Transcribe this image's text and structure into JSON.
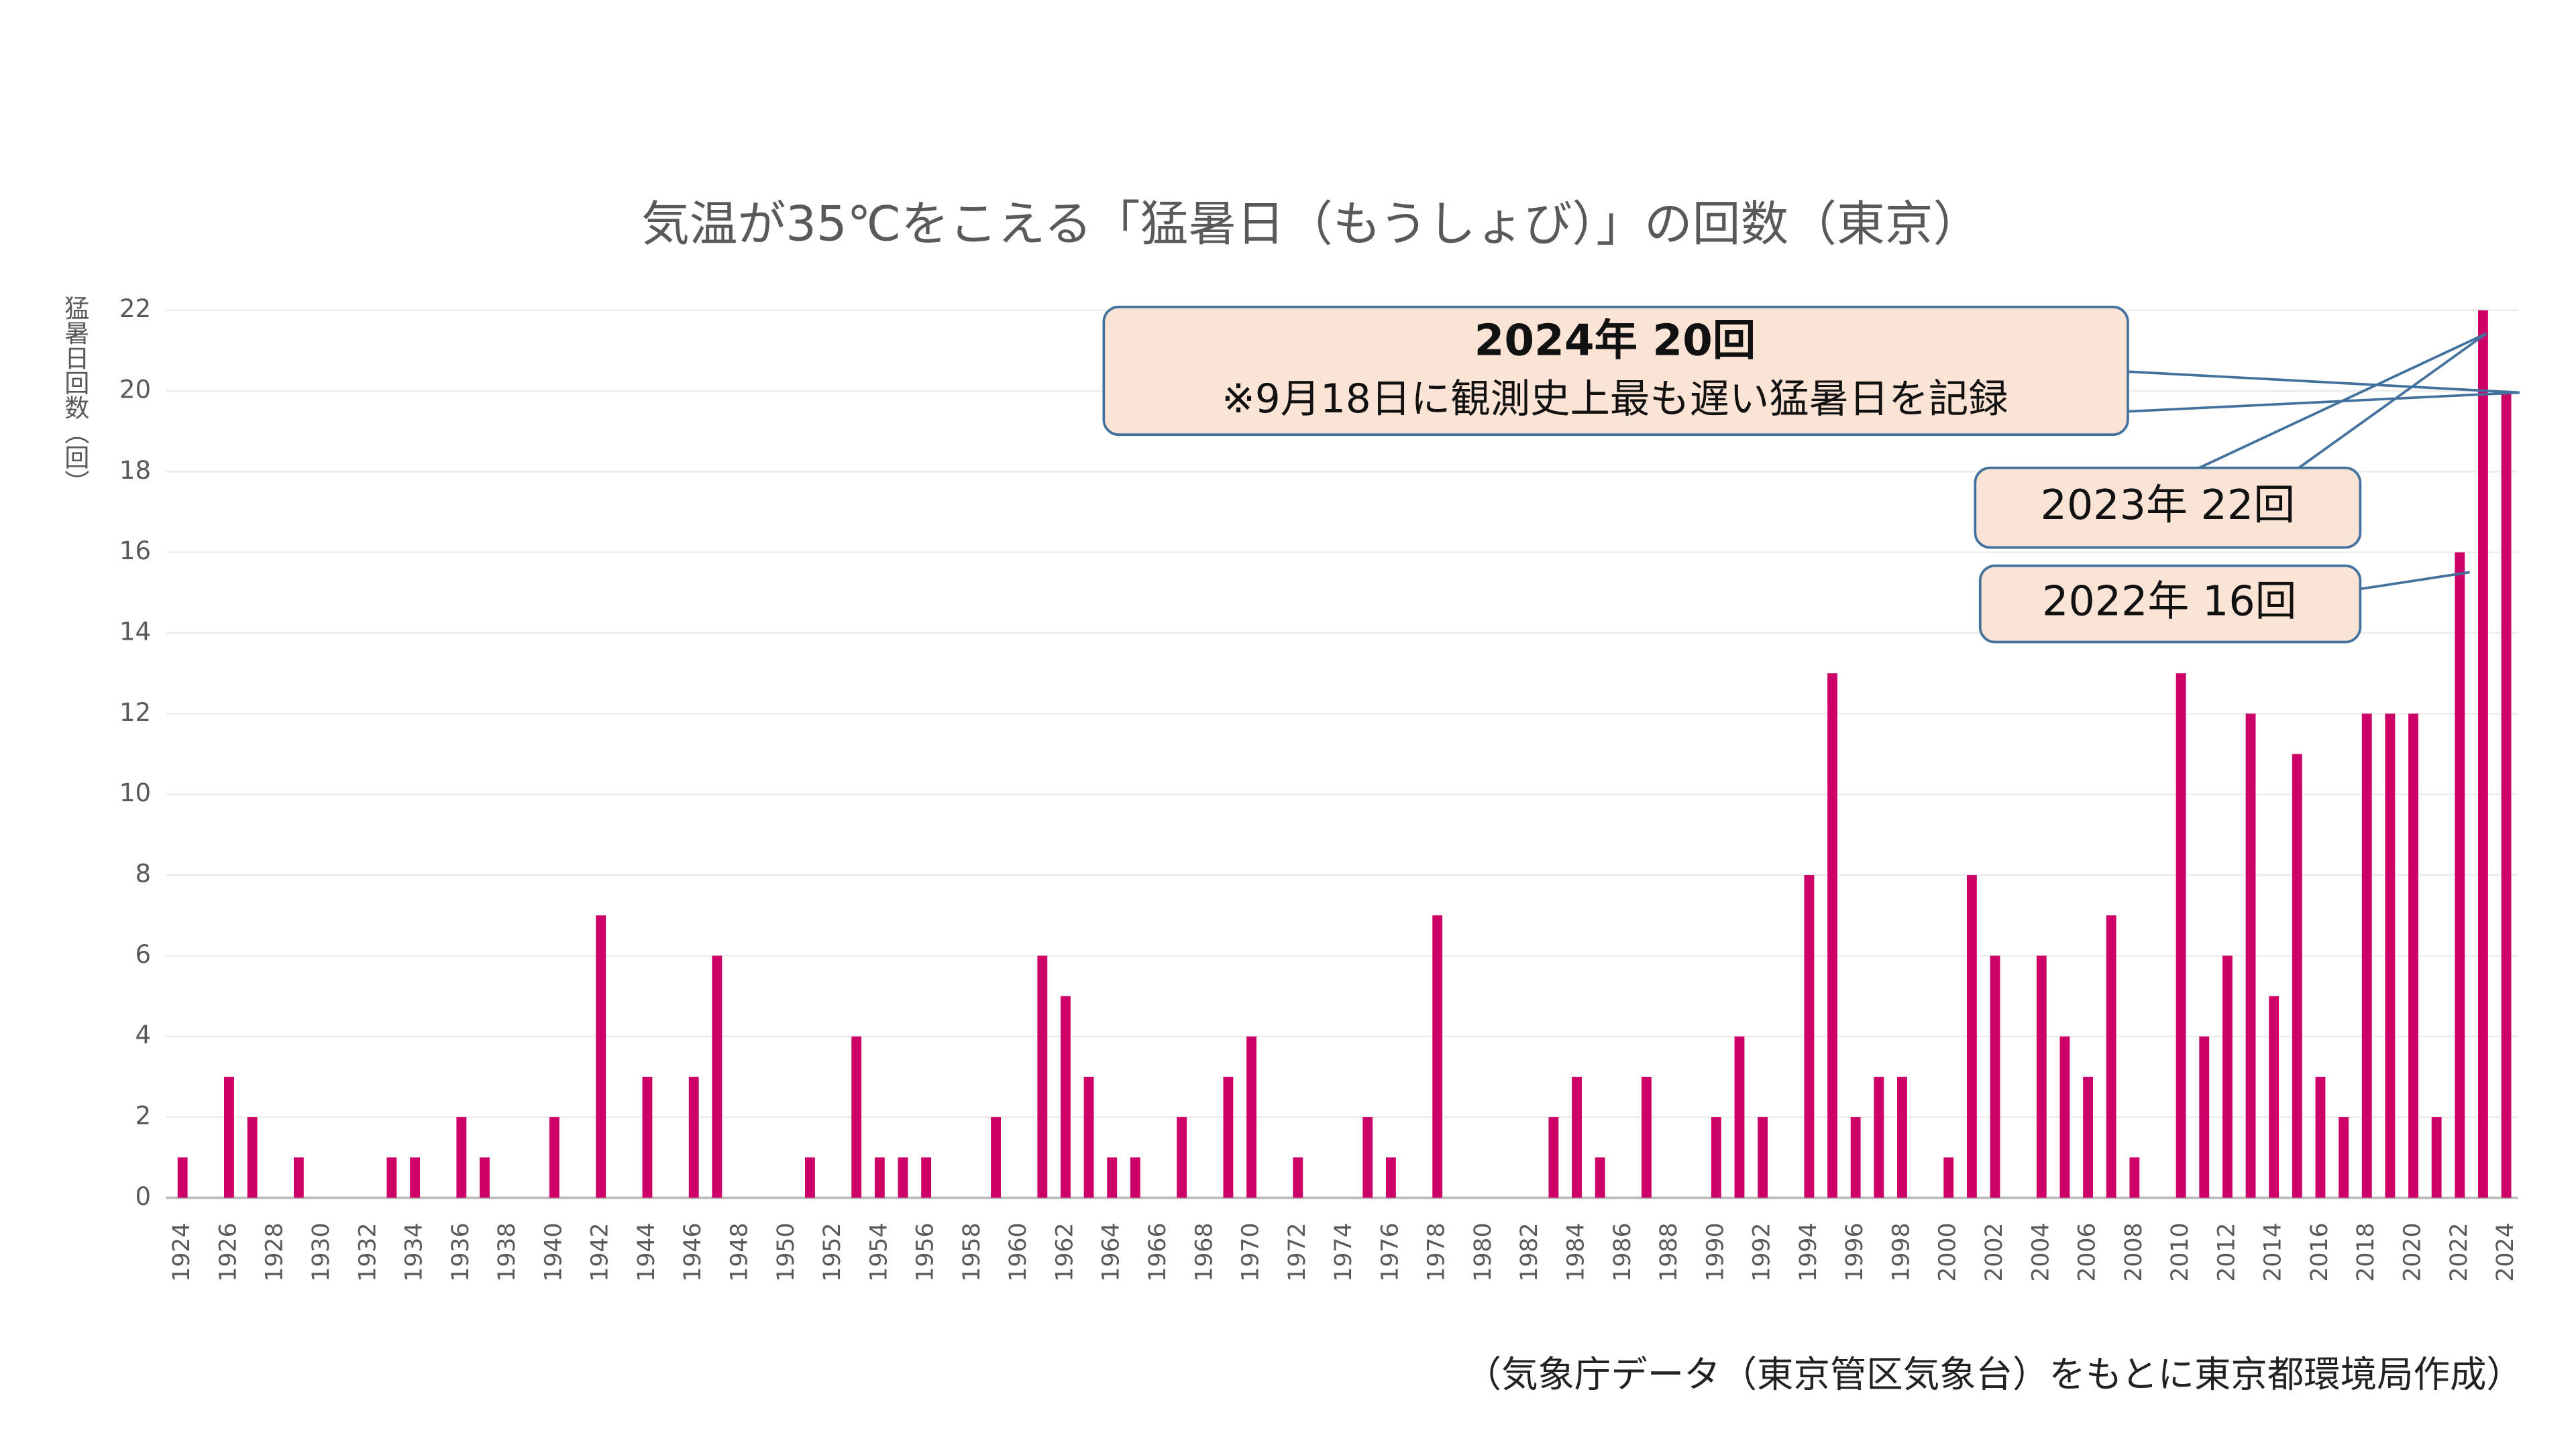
{
  "chart_data": {
    "type": "bar",
    "title": "気温が35℃をこえる「猛暑日（もうしょび）」の回数（東京）",
    "y_label": "猛暑日回数（回）",
    "source": "（気象庁データ（東京管区気象台）をもとに東京都環境局作成）",
    "annotations": [
      {
        "title": "2024年  20回",
        "text": "※9月18日に観測史上最も遅い猛暑日を記録"
      },
      {
        "text": "2023年  22回"
      },
      {
        "text": "2022年  16回"
      }
    ],
    "categories": [
      "1924",
      null,
      "1926",
      null,
      "1928",
      null,
      "1930",
      null,
      "1932",
      null,
      "1934",
      null,
      "1936",
      null,
      "1938",
      null,
      "1940",
      null,
      "1942",
      null,
      "1944",
      null,
      "1946",
      null,
      "1948",
      null,
      "1950",
      null,
      "1952",
      null,
      "1954",
      null,
      "1956",
      null,
      "1958",
      null,
      "1960",
      null,
      "1962",
      null,
      "1964",
      null,
      "1966",
      null,
      "1968",
      null,
      "1970",
      null,
      "1972",
      null,
      "1974",
      null,
      "1976",
      null,
      "1978",
      null,
      "1980",
      null,
      "1982",
      null,
      "1984",
      null,
      "1986",
      null,
      "1988",
      null,
      "1990",
      null,
      "1992",
      null,
      "1994",
      null,
      "1996",
      null,
      "1998",
      null,
      "2000",
      null,
      "2002",
      null,
      "2004",
      null,
      "2006",
      null,
      "2008",
      null,
      "2010",
      null,
      "2012",
      null,
      "2014",
      null,
      "2016",
      null,
      "2018",
      null,
      "2020",
      null,
      "2022",
      null,
      "2024"
    ],
    "values": [
      1,
      0,
      3,
      2,
      0,
      1,
      0,
      0,
      0,
      1,
      1,
      0,
      2,
      1,
      0,
      0,
      2,
      0,
      7,
      0,
      3,
      0,
      3,
      6,
      0,
      0,
      0,
      1,
      0,
      4,
      1,
      1,
      1,
      0,
      0,
      2,
      0,
      6,
      5,
      3,
      1,
      1,
      0,
      2,
      0,
      3,
      4,
      0,
      1,
      0,
      0,
      2,
      1,
      0,
      7,
      0,
      0,
      0,
      0,
      2,
      3,
      1,
      0,
      3,
      0,
      0,
      2,
      4,
      2,
      0,
      8,
      13,
      2,
      3,
      3,
      0,
      1,
      8,
      6,
      0,
      6,
      4,
      3,
      7,
      1,
      0,
      13,
      4,
      6,
      12,
      5,
      11,
      3,
      2,
      12,
      12,
      12,
      2,
      16,
      22,
      20
    ],
    "color": "#cc0066",
    "ylim": [
      0,
      22
    ],
    "yticks": [
      0,
      2,
      4,
      6,
      8,
      10,
      12,
      14,
      16,
      18,
      20,
      22
    ],
    "grid": true
  }
}
